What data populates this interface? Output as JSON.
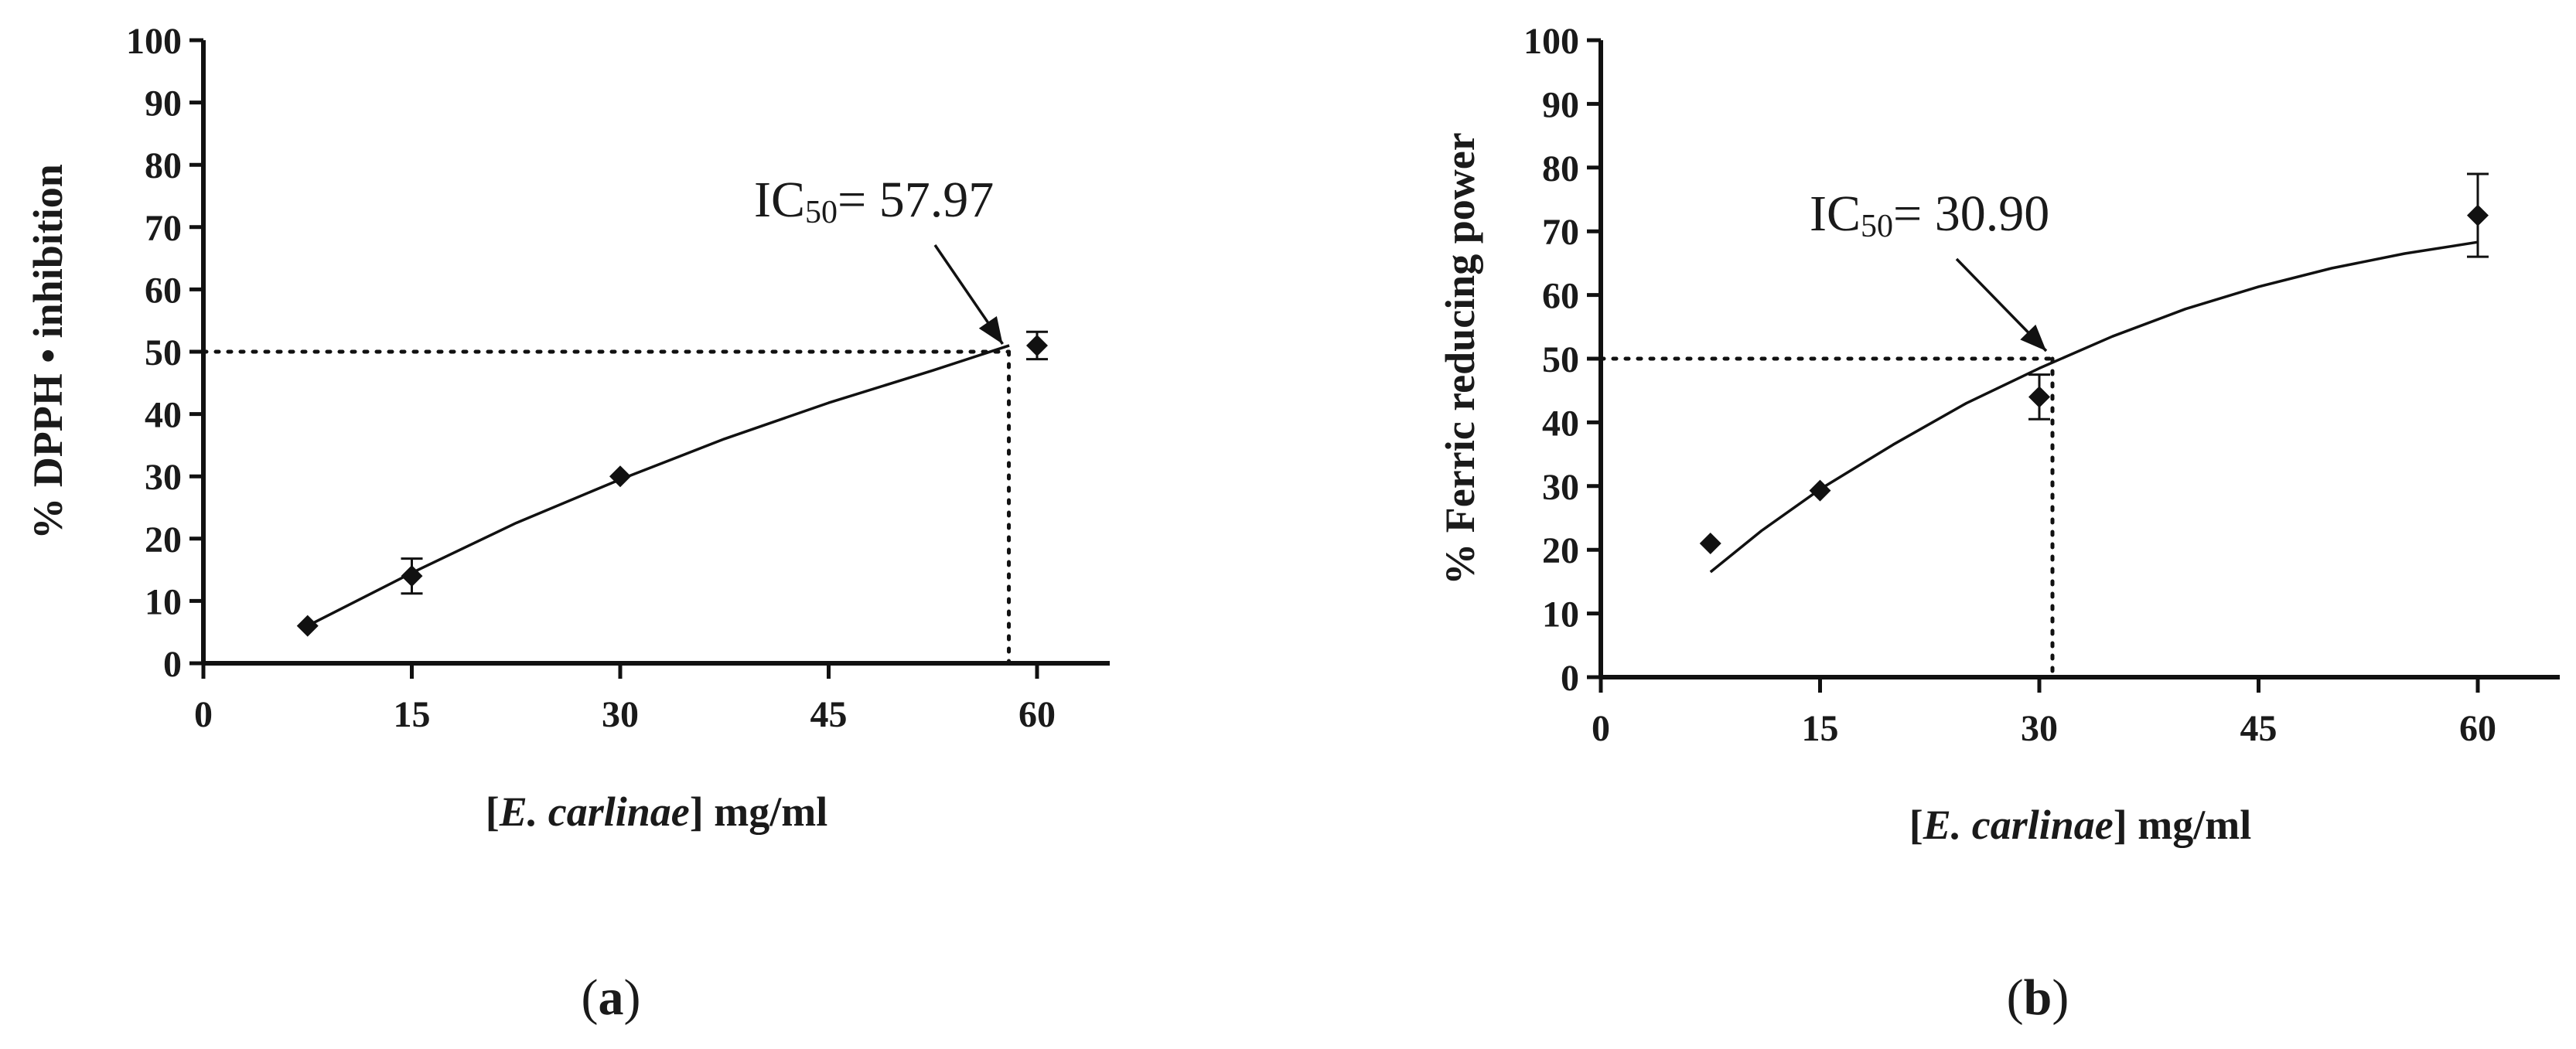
{
  "chart_data": [
    {
      "panel_label": "a",
      "type": "scatter",
      "xlabel": {
        "prefix": "[",
        "italic": "E. carlinae",
        "suffix": "] mg/ml"
      },
      "ylabel": "% DPPH • inhibition",
      "xlim": [
        0,
        65
      ],
      "ylim": [
        0,
        100
      ],
      "x_ticks": [
        0,
        15,
        30,
        45,
        60
      ],
      "y_ticks": [
        0,
        10,
        20,
        30,
        40,
        50,
        60,
        70,
        80,
        90,
        100
      ],
      "grid": false,
      "series": [
        {
          "points": [
            {
              "x": 7.5,
              "y": 6.0,
              "err": 0.6
            },
            {
              "x": 15,
              "y": 14.0,
              "err": 2.8
            },
            {
              "x": 30,
              "y": 30.0,
              "err": 0.6
            },
            {
              "x": 60,
              "y": 51.0,
              "err": 2.2
            }
          ],
          "fit_curve": {
            "x": [
              7.5,
              15,
              22.5,
              30,
              37.5,
              45,
              52.5,
              58
            ],
            "y": [
              6.0,
              14.5,
              22.5,
              29.5,
              36.0,
              41.8,
              47.0,
              51.0
            ]
          }
        }
      ],
      "annotation": {
        "prefix": "IC",
        "subscript": "50",
        "suffix": "= 57.97",
        "value_x": 57.97,
        "value_y": 50
      }
    },
    {
      "panel_label": "b",
      "type": "scatter",
      "xlabel": {
        "prefix": "[",
        "italic": "E. carlinae",
        "suffix": "] mg/ml"
      },
      "ylabel": "% Ferric reducing power",
      "xlim": [
        0,
        65
      ],
      "ylim": [
        0,
        100
      ],
      "x_ticks": [
        0,
        15,
        30,
        45,
        60
      ],
      "y_ticks": [
        0,
        10,
        20,
        30,
        40,
        50,
        60,
        70,
        80,
        90,
        100
      ],
      "grid": false,
      "series": [
        {
          "points": [
            {
              "x": 7.5,
              "y": 21.0,
              "err": 0.5
            },
            {
              "x": 15,
              "y": 29.3,
              "err": 0.7
            },
            {
              "x": 30,
              "y": 44.0,
              "err": 3.5
            },
            {
              "x": 60,
              "y": 72.5,
              "err": 6.5
            }
          ],
          "fit_curve": {
            "x": [
              7.5,
              11,
              15,
              20,
              25,
              30,
              35,
              40,
              45,
              50,
              55,
              60
            ],
            "y": [
              16.5,
              23.0,
              29.5,
              36.5,
              43.0,
              48.5,
              53.5,
              57.8,
              61.3,
              64.2,
              66.5,
              68.3
            ]
          }
        }
      ],
      "annotation": {
        "prefix": "IC",
        "subscript": "50",
        "suffix": "= 30.90",
        "value_x": 30.9,
        "value_y": 50
      }
    }
  ]
}
